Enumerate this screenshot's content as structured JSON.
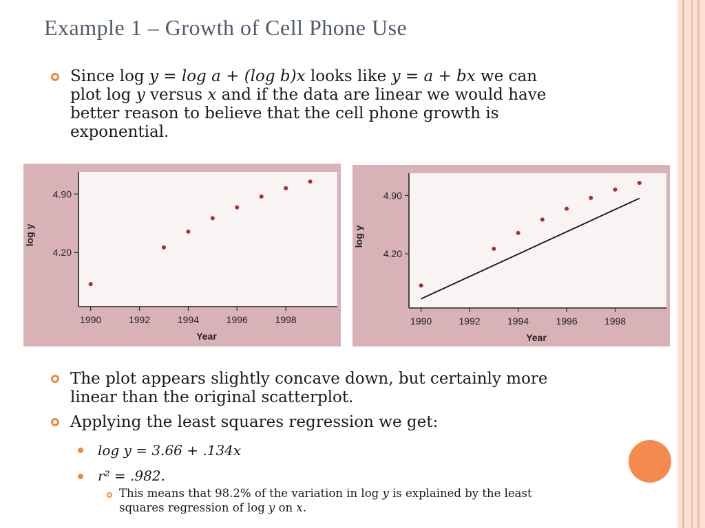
{
  "slide": {
    "title": "Example 1 – Growth of Cell Phone Use",
    "bullet1": {
      "pre": "Since log ",
      "formula1": "y = log a + (log b)x",
      "mid": "  looks like ",
      "formula2": "y = a + bx",
      "post1": " we can",
      "line2a": "plot log ",
      "line2y": "y",
      "line2b": " versus ",
      "line2x": "x",
      "line2c": " and if the data are linear we would have",
      "line3": "better reason to believe that the cell phone growth is",
      "line4": "exponential."
    },
    "bullet2": {
      "line1": "The plot appears slightly concave down, but certainly more",
      "line2": "linear than the original scatterplot."
    },
    "bullet3": "Applying the least squares regression we get:",
    "sub1": "log y = 3.66 + .134x",
    "sub2": "r² = .982.",
    "subsub": {
      "line1a": "This means that 98.2% of the variation in log ",
      "line1y": "y",
      "line1b": " is explained by the least",
      "line2a": "squares regression of log ",
      "line2y": "y",
      "line2b": " on ",
      "line2x": "x",
      "line2c": "."
    }
  },
  "colors": {
    "accent": "#f08a3a",
    "title": "#4f5a6b",
    "photo_bg": "#d8b2b7",
    "plot_bg": "#f7f4f3",
    "point": "#b0283a"
  },
  "chart_data": [
    {
      "type": "scatter",
      "xlabel": "Year",
      "ylabel": "log y",
      "x_ticks": [
        "1990",
        "1992",
        "1994",
        "1996",
        "1998"
      ],
      "y_ticks": [
        "4.20",
        "4.90"
      ],
      "xlim": [
        1989.5,
        2000
      ],
      "ylim": [
        3.55,
        5.1
      ],
      "points": [
        {
          "x": 1990,
          "y": 3.82
        },
        {
          "x": 1993,
          "y": 4.26
        },
        {
          "x": 1994,
          "y": 4.45
        },
        {
          "x": 1995,
          "y": 4.61
        },
        {
          "x": 1996,
          "y": 4.74
        },
        {
          "x": 1997,
          "y": 4.87
        },
        {
          "x": 1998,
          "y": 4.97
        },
        {
          "x": 1999,
          "y": 5.05
        }
      ]
    },
    {
      "type": "scatter",
      "xlabel": "Year",
      "ylabel": "log y",
      "x_ticks": [
        "1990",
        "1992",
        "1994",
        "1996",
        "1998"
      ],
      "y_ticks": [
        "4.20",
        "4.90"
      ],
      "xlim": [
        1989.5,
        2000
      ],
      "ylim": [
        3.55,
        5.1
      ],
      "points": [
        {
          "x": 1990,
          "y": 3.82
        },
        {
          "x": 1993,
          "y": 4.26
        },
        {
          "x": 1994,
          "y": 4.45
        },
        {
          "x": 1995,
          "y": 4.61
        },
        {
          "x": 1996,
          "y": 4.74
        },
        {
          "x": 1997,
          "y": 4.87
        },
        {
          "x": 1998,
          "y": 4.97
        },
        {
          "x": 1999,
          "y": 5.05
        }
      ],
      "regression": {
        "x0": 1990,
        "x1": 1999,
        "intercept": 3.66,
        "slope": 0.134
      }
    }
  ]
}
